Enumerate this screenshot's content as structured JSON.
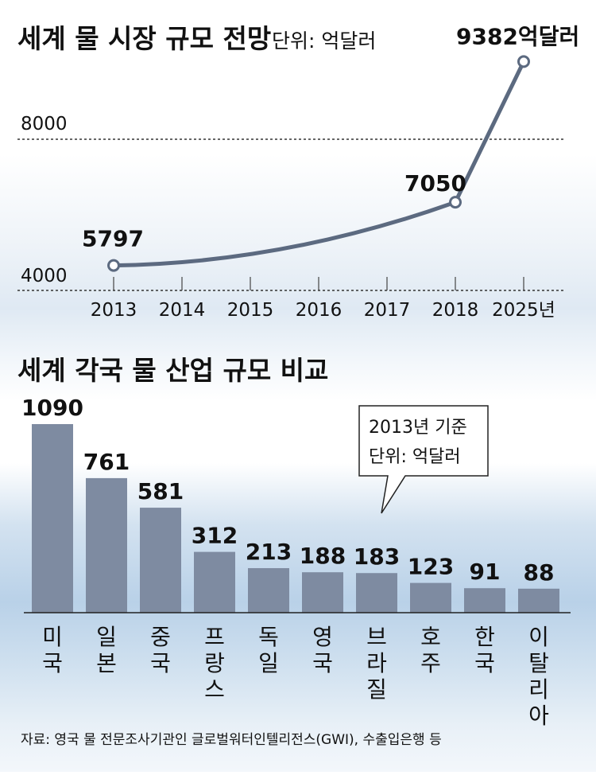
{
  "chart_data": [
    {
      "type": "line",
      "title": "세계 물 시장 규모 전망",
      "unit": "단위: 억달러",
      "x": [
        "2013",
        "2014",
        "2015",
        "2016",
        "2017",
        "2018",
        "2025년"
      ],
      "points": [
        {
          "x": "2013",
          "y": 5797,
          "label": "5797"
        },
        {
          "x": "2018",
          "y": 7050,
          "label": "7050"
        },
        {
          "x": "2025년",
          "y": 9382,
          "label": "9382억달러"
        }
      ],
      "yticks": [
        "4000",
        "8000"
      ],
      "ylim": [
        4000,
        8000
      ]
    },
    {
      "type": "bar",
      "title": "세계 각국 물 산업 규모 비교",
      "categories": [
        "미국",
        "일본",
        "중국",
        "프랑스",
        "독일",
        "영국",
        "브라질",
        "호주",
        "한국",
        "이탈리아"
      ],
      "values": [
        1090,
        761,
        581,
        312,
        213,
        188,
        183,
        123,
        91,
        88
      ],
      "callout": {
        "line1": "2013년 기준",
        "line2": "단위: 억달러"
      },
      "ylim": [
        0,
        1090
      ]
    }
  ],
  "source": "자료: 영국 물 전문조사기관인 글로벌워터인텔리전스(GWI), 수출입은행 등",
  "colors": {
    "bar": "#7e8ba1",
    "line": "#5c6a80",
    "text": "#111111"
  }
}
